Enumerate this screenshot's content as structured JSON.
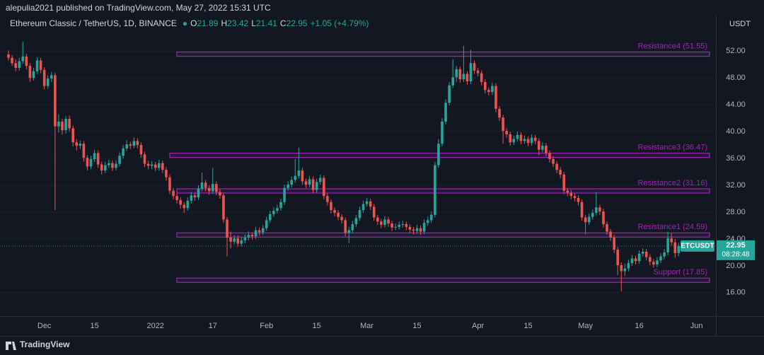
{
  "header": {
    "publisher": "alepulia2021 published on TradingView.com, May 27, 2022 15:31 UTC"
  },
  "footer": {
    "brand": "TradingView"
  },
  "chart_data": {
    "type": "candlestick",
    "title": "Ethereum Classic / TetherUS, 1D, BINANCE",
    "ohlc_labels": [
      "O",
      "H",
      "L",
      "C"
    ],
    "change_text": "+1.05 (+4.79%)",
    "currency": "USDT",
    "symbol_tag": "ETCUSDT",
    "countdown": "08:28:48",
    "up_color": "#26a69a",
    "down_color": "#ef5350",
    "level_color": "#9c27b0",
    "ylim": [
      12.5,
      57.3
    ],
    "yticks": [
      {
        "value": 16,
        "label": "16.00"
      },
      {
        "value": 20,
        "label": "20.00"
      },
      {
        "value": 24,
        "label": "24.00"
      },
      {
        "value": 28,
        "label": "28.00"
      },
      {
        "value": 32,
        "label": "32.00"
      },
      {
        "value": 36,
        "label": "36.00"
      },
      {
        "value": 40,
        "label": "40.00"
      },
      {
        "value": 44,
        "label": "44.00"
      },
      {
        "value": 48,
        "label": "48.00"
      },
      {
        "value": 52,
        "label": "52.00"
      }
    ],
    "levels": [
      {
        "value": 51.55,
        "label": "Resistance4 (51.55)"
      },
      {
        "value": 36.47,
        "label": "Resistance3 (36.47)"
      },
      {
        "value": 31.16,
        "label": "Resistance2 (31.16)"
      },
      {
        "value": 24.59,
        "label": "Resistance1 (24.59)"
      },
      {
        "value": 17.85,
        "label": "Support (17.85)"
      }
    ],
    "categories": [
      null,
      null,
      null,
      null,
      null,
      null,
      null,
      null,
      null,
      null,
      "Dec",
      null,
      null,
      null,
      null,
      null,
      null,
      null,
      null,
      null,
      null,
      null,
      null,
      null,
      "15",
      null,
      null,
      null,
      null,
      null,
      null,
      null,
      null,
      null,
      null,
      null,
      null,
      null,
      null,
      null,
      null,
      "2022",
      null,
      null,
      null,
      null,
      null,
      null,
      null,
      null,
      null,
      null,
      null,
      null,
      null,
      null,
      null,
      "17",
      null,
      null,
      null,
      null,
      null,
      null,
      null,
      null,
      null,
      null,
      null,
      null,
      null,
      null,
      "Feb",
      null,
      null,
      null,
      null,
      null,
      null,
      null,
      null,
      null,
      null,
      null,
      null,
      null,
      "15",
      null,
      null,
      null,
      null,
      null,
      null,
      null,
      null,
      null,
      null,
      null,
      null,
      null,
      "Mar",
      null,
      null,
      null,
      null,
      null,
      null,
      null,
      null,
      null,
      null,
      null,
      null,
      null,
      "15",
      null,
      null,
      null,
      null,
      null,
      null,
      null,
      null,
      null,
      null,
      null,
      null,
      null,
      null,
      null,
      null,
      "Apr",
      null,
      null,
      null,
      null,
      null,
      null,
      null,
      null,
      null,
      null,
      null,
      null,
      null,
      "15",
      null,
      null,
      null,
      null,
      null,
      null,
      null,
      null,
      null,
      null,
      null,
      null,
      null,
      null,
      null,
      "May",
      null,
      null,
      null,
      null,
      null,
      null,
      null,
      null,
      null,
      null,
      null,
      null,
      null,
      null,
      "16",
      null,
      null,
      null,
      null,
      null,
      null,
      null,
      null,
      null,
      null,
      null,
      null,
      null,
      null,
      null,
      "Jun"
    ],
    "ohlc": [
      [
        51.5,
        52.1,
        50.6,
        51.0
      ],
      [
        51.0,
        51.4,
        49.8,
        50.2
      ],
      [
        50.2,
        50.8,
        49.0,
        49.5
      ],
      [
        49.5,
        51.0,
        49.1,
        50.5
      ],
      [
        50.5,
        53.4,
        50.1,
        51.2
      ],
      [
        51.2,
        51.6,
        49.3,
        49.8
      ],
      [
        49.8,
        50.2,
        47.4,
        48.0
      ],
      [
        48.0,
        49.5,
        47.6,
        49.0
      ],
      [
        49.0,
        51.1,
        48.6,
        50.6
      ],
      [
        50.6,
        51.0,
        48.7,
        49.2
      ],
      [
        49.2,
        49.6,
        46.3,
        46.8
      ],
      [
        46.8,
        48.4,
        46.4,
        47.9
      ],
      [
        47.9,
        48.9,
        47.4,
        48.4
      ],
      [
        48.4,
        48.8,
        28.3,
        40.8
      ],
      [
        40.8,
        42.6,
        39.9,
        41.5
      ],
      [
        41.5,
        41.9,
        39.6,
        40.2
      ],
      [
        40.2,
        42.3,
        39.7,
        41.9
      ],
      [
        41.9,
        42.4,
        40.0,
        40.5
      ],
      [
        40.5,
        40.9,
        37.8,
        38.4
      ],
      [
        38.4,
        38.9,
        37.2,
        37.9
      ],
      [
        37.9,
        38.7,
        37.4,
        38.2
      ],
      [
        38.2,
        38.6,
        35.5,
        36.1
      ],
      [
        36.1,
        36.5,
        34.2,
        34.8
      ],
      [
        34.8,
        36.4,
        34.4,
        35.9
      ],
      [
        35.9,
        37.3,
        35.5,
        36.8
      ],
      [
        36.8,
        37.2,
        34.6,
        35.1
      ],
      [
        35.1,
        35.5,
        33.6,
        34.2
      ],
      [
        34.2,
        35.5,
        33.8,
        35.0
      ],
      [
        35.0,
        35.8,
        34.6,
        35.3
      ],
      [
        35.3,
        35.7,
        34.1,
        34.6
      ],
      [
        34.6,
        35.7,
        34.2,
        35.2
      ],
      [
        35.2,
        36.9,
        34.8,
        36.4
      ],
      [
        36.4,
        38.0,
        36.0,
        37.5
      ],
      [
        37.5,
        38.7,
        37.1,
        38.1
      ],
      [
        38.1,
        38.5,
        37.4,
        37.9
      ],
      [
        37.9,
        39.1,
        37.5,
        38.6
      ],
      [
        38.6,
        39.0,
        37.5,
        38.0
      ],
      [
        38.0,
        38.4,
        36.1,
        36.6
      ],
      [
        36.6,
        37.0,
        34.7,
        35.2
      ],
      [
        35.2,
        35.7,
        34.4,
        34.9
      ],
      [
        34.9,
        35.6,
        34.4,
        35.1
      ],
      [
        35.1,
        35.5,
        34.1,
        34.6
      ],
      [
        34.6,
        35.8,
        34.2,
        35.3
      ],
      [
        35.3,
        35.7,
        33.8,
        34.3
      ],
      [
        34.3,
        34.7,
        32.7,
        33.2
      ],
      [
        33.2,
        33.6,
        30.7,
        31.2
      ],
      [
        31.2,
        31.6,
        29.9,
        30.4
      ],
      [
        30.4,
        30.8,
        29.3,
        29.8
      ],
      [
        29.8,
        30.2,
        28.5,
        29.1
      ],
      [
        29.1,
        29.5,
        27.9,
        28.6
      ],
      [
        28.6,
        30.2,
        28.2,
        29.7
      ],
      [
        29.7,
        31.0,
        29.3,
        30.5
      ],
      [
        30.5,
        30.9,
        29.7,
        30.2
      ],
      [
        30.2,
        32.0,
        29.8,
        31.5
      ],
      [
        31.5,
        33.9,
        31.1,
        32.4
      ],
      [
        32.4,
        32.8,
        31.1,
        31.6
      ],
      [
        31.6,
        32.0,
        30.6,
        31.1
      ],
      [
        31.1,
        34.6,
        30.7,
        32.2
      ],
      [
        32.2,
        32.6,
        30.5,
        31.0
      ],
      [
        31.0,
        31.4,
        30.0,
        30.5
      ],
      [
        30.5,
        30.9,
        26.4,
        26.9
      ],
      [
        26.9,
        27.3,
        21.4,
        24.2
      ],
      [
        24.2,
        25.1,
        22.6,
        23.6
      ],
      [
        23.6,
        24.6,
        23.2,
        24.1
      ],
      [
        24.1,
        24.5,
        22.8,
        23.3
      ],
      [
        23.3,
        24.3,
        22.9,
        23.8
      ],
      [
        23.8,
        24.7,
        23.4,
        24.2
      ],
      [
        24.2,
        25.1,
        23.8,
        24.6
      ],
      [
        24.6,
        25.0,
        23.9,
        24.4
      ],
      [
        24.4,
        25.8,
        24.0,
        25.3
      ],
      [
        25.3,
        25.7,
        24.5,
        25.0
      ],
      [
        25.0,
        26.1,
        24.6,
        25.6
      ],
      [
        25.6,
        27.3,
        25.2,
        26.8
      ],
      [
        26.8,
        28.2,
        26.4,
        27.7
      ],
      [
        27.7,
        28.7,
        27.3,
        28.2
      ],
      [
        28.2,
        29.1,
        27.8,
        28.6
      ],
      [
        28.6,
        30.0,
        28.2,
        29.5
      ],
      [
        29.5,
        32.1,
        29.1,
        31.6
      ],
      [
        31.6,
        32.6,
        31.2,
        32.1
      ],
      [
        32.1,
        33.3,
        31.7,
        32.8
      ],
      [
        32.8,
        35.9,
        32.4,
        33.4
      ],
      [
        33.4,
        37.6,
        33.0,
        34.2
      ],
      [
        34.2,
        34.6,
        32.1,
        32.6
      ],
      [
        32.6,
        33.0,
        31.6,
        32.1
      ],
      [
        32.1,
        33.4,
        31.7,
        32.9
      ],
      [
        32.9,
        33.3,
        30.8,
        31.3
      ],
      [
        31.3,
        33.0,
        30.9,
        32.5
      ],
      [
        32.5,
        33.6,
        32.1,
        33.1
      ],
      [
        33.1,
        33.5,
        29.9,
        30.4
      ],
      [
        30.4,
        30.8,
        29.0,
        29.5
      ],
      [
        29.5,
        29.9,
        27.8,
        28.3
      ],
      [
        28.3,
        28.7,
        27.4,
        27.9
      ],
      [
        27.9,
        28.3,
        26.8,
        27.3
      ],
      [
        27.3,
        27.7,
        26.3,
        26.8
      ],
      [
        26.8,
        27.2,
        24.4,
        24.9
      ],
      [
        24.9,
        25.8,
        23.4,
        25.3
      ],
      [
        25.3,
        26.7,
        24.9,
        26.2
      ],
      [
        26.2,
        27.6,
        25.8,
        27.1
      ],
      [
        27.1,
        28.8,
        26.7,
        28.3
      ],
      [
        28.3,
        29.7,
        27.9,
        29.2
      ],
      [
        29.2,
        30.1,
        28.8,
        29.6
      ],
      [
        29.6,
        30.0,
        28.3,
        28.8
      ],
      [
        28.8,
        29.2,
        26.7,
        27.2
      ],
      [
        27.2,
        27.6,
        26.1,
        26.6
      ],
      [
        26.6,
        27.0,
        25.6,
        26.1
      ],
      [
        26.1,
        27.4,
        25.7,
        26.9
      ],
      [
        26.9,
        27.3,
        25.8,
        26.3
      ],
      [
        26.3,
        26.7,
        25.2,
        25.7
      ],
      [
        25.7,
        26.3,
        25.3,
        25.8
      ],
      [
        25.8,
        26.6,
        25.4,
        26.1
      ],
      [
        26.1,
        26.7,
        25.7,
        26.2
      ],
      [
        26.2,
        26.6,
        25.3,
        25.8
      ],
      [
        25.8,
        26.2,
        24.9,
        25.4
      ],
      [
        25.4,
        25.8,
        24.7,
        25.2
      ],
      [
        25.2,
        26.1,
        24.8,
        25.6
      ],
      [
        25.6,
        26.0,
        24.6,
        25.1
      ],
      [
        25.1,
        26.9,
        24.7,
        26.4
      ],
      [
        26.4,
        27.3,
        26.0,
        26.8
      ],
      [
        26.8,
        28.1,
        26.4,
        27.6
      ],
      [
        27.6,
        35.5,
        27.2,
        35.0
      ],
      [
        35.0,
        38.9,
        34.6,
        38.2
      ],
      [
        38.2,
        42.0,
        37.8,
        41.5
      ],
      [
        41.5,
        44.8,
        41.1,
        44.3
      ],
      [
        44.3,
        47.4,
        43.9,
        46.9
      ],
      [
        46.9,
        50.8,
        46.5,
        48.1
      ],
      [
        48.1,
        49.8,
        47.4,
        49.3
      ],
      [
        49.3,
        49.7,
        47.3,
        47.8
      ],
      [
        47.8,
        52.8,
        47.4,
        48.6
      ],
      [
        48.6,
        49.0,
        47.0,
        47.5
      ],
      [
        47.5,
        52.2,
        47.1,
        50.2
      ],
      [
        50.2,
        50.6,
        48.6,
        49.1
      ],
      [
        49.1,
        49.5,
        48.2,
        48.7
      ],
      [
        48.7,
        49.1,
        46.9,
        47.4
      ],
      [
        47.4,
        47.8,
        45.7,
        46.2
      ],
      [
        46.2,
        46.6,
        45.4,
        45.9
      ],
      [
        45.9,
        47.3,
        45.5,
        46.8
      ],
      [
        46.8,
        47.2,
        42.9,
        43.4
      ],
      [
        43.4,
        43.8,
        41.6,
        42.1
      ],
      [
        42.1,
        42.5,
        38.2,
        40.1
      ],
      [
        40.1,
        40.5,
        39.1,
        39.6
      ],
      [
        39.6,
        40.0,
        37.9,
        38.4
      ],
      [
        38.4,
        39.4,
        38.0,
        38.9
      ],
      [
        38.9,
        40.0,
        38.5,
        39.5
      ],
      [
        39.5,
        39.9,
        38.1,
        38.6
      ],
      [
        38.6,
        39.4,
        38.2,
        38.9
      ],
      [
        38.9,
        39.3,
        37.8,
        38.3
      ],
      [
        38.3,
        39.6,
        37.9,
        39.1
      ],
      [
        39.1,
        39.5,
        38.1,
        38.6
      ],
      [
        38.6,
        39.0,
        36.5,
        37.3
      ],
      [
        37.3,
        38.4,
        36.9,
        37.9
      ],
      [
        37.9,
        38.3,
        36.3,
        36.8
      ],
      [
        36.8,
        37.2,
        35.4,
        35.9
      ],
      [
        35.9,
        36.3,
        34.7,
        35.2
      ],
      [
        35.2,
        35.6,
        33.8,
        34.3
      ],
      [
        34.3,
        34.7,
        33.1,
        33.6
      ],
      [
        33.6,
        34.0,
        30.7,
        31.2
      ],
      [
        31.2,
        31.6,
        30.4,
        30.9
      ],
      [
        30.9,
        31.3,
        29.9,
        30.4
      ],
      [
        30.4,
        30.8,
        29.6,
        30.1
      ],
      [
        30.1,
        30.5,
        29.0,
        29.5
      ],
      [
        29.5,
        29.9,
        26.7,
        27.2
      ],
      [
        27.2,
        27.6,
        24.7,
        26.5
      ],
      [
        26.5,
        27.8,
        26.1,
        27.3
      ],
      [
        27.3,
        28.4,
        26.9,
        27.9
      ],
      [
        27.9,
        31.0,
        27.5,
        28.7
      ],
      [
        28.7,
        29.1,
        27.6,
        28.1
      ],
      [
        28.1,
        28.5,
        25.7,
        26.2
      ],
      [
        26.2,
        26.6,
        24.6,
        25.1
      ],
      [
        25.1,
        25.5,
        23.7,
        24.2
      ],
      [
        24.2,
        24.6,
        21.9,
        22.4
      ],
      [
        22.4,
        22.8,
        18.6,
        20.1
      ],
      [
        20.1,
        20.5,
        16.2,
        19.2
      ],
      [
        19.2,
        20.3,
        18.5,
        19.6
      ],
      [
        19.6,
        20.9,
        19.2,
        20.4
      ],
      [
        20.4,
        21.6,
        20.0,
        21.1
      ],
      [
        21.1,
        21.5,
        20.2,
        20.7
      ],
      [
        20.7,
        22.3,
        20.3,
        21.8
      ],
      [
        21.8,
        22.6,
        21.4,
        22.1
      ],
      [
        22.1,
        22.5,
        20.8,
        21.3
      ],
      [
        21.3,
        21.7,
        20.1,
        20.6
      ],
      [
        20.6,
        21.0,
        19.7,
        20.2
      ],
      [
        20.2,
        21.3,
        19.8,
        20.8
      ],
      [
        20.8,
        21.9,
        20.4,
        21.4
      ],
      [
        21.4,
        22.5,
        21.0,
        22.0
      ],
      [
        22.0,
        25.1,
        21.6,
        24.1
      ],
      [
        24.1,
        24.9,
        23.0,
        23.5
      ],
      [
        23.5,
        24.0,
        21.2,
        21.89
      ],
      [
        21.89,
        23.42,
        21.41,
        22.95
      ],
      null,
      null,
      null,
      null,
      null
    ]
  }
}
